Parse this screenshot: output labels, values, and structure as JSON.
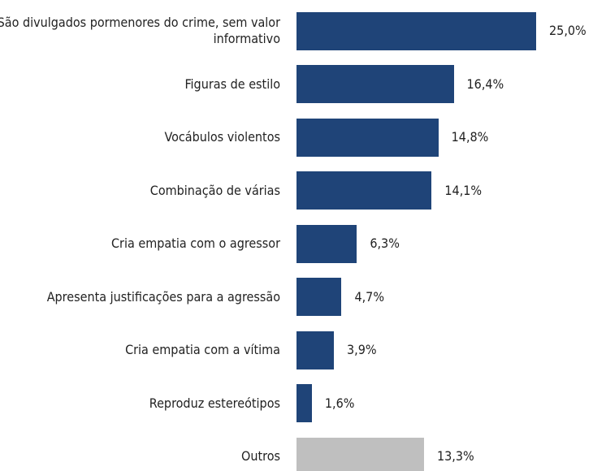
{
  "chart_data": {
    "type": "bar",
    "orientation": "horizontal",
    "categories": [
      "São divulgados pormenores do crime, sem valor informativo",
      "Figuras de estilo",
      "Vocábulos violentos",
      "Combinação de várias",
      "Cria empatia com o agressor",
      "Apresenta justificações para a agressão",
      "Cria empatia com a vítima",
      "Reproduz estereótipos",
      "Outros"
    ],
    "values": [
      25.0,
      16.4,
      14.8,
      14.1,
      6.3,
      4.7,
      3.9,
      1.6,
      13.3
    ],
    "value_labels": [
      "25,0%",
      "16,4%",
      "14,8%",
      "14,1%",
      "6,3%",
      "4,7%",
      "3,9%",
      "1,6%",
      "13,3%"
    ],
    "colors": [
      "#1f4478",
      "#1f4478",
      "#1f4478",
      "#1f4478",
      "#1f4478",
      "#1f4478",
      "#1f4478",
      "#1f4478",
      "#bfbfbf"
    ]
  }
}
